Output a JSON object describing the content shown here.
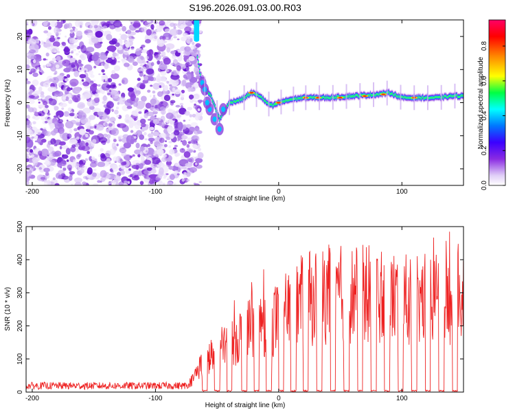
{
  "title": "S196.2026.091.03.00.R03",
  "chart_data": [
    {
      "type": "heatmap",
      "name": "spectrogram",
      "xlabel": "Height of straight line (km)",
      "ylabel": "Frequency (Hz)",
      "xlim": [
        -205,
        150
      ],
      "ylim": [
        -25,
        25
      ],
      "xticks": [
        -200,
        -100,
        0,
        100
      ],
      "xtick_labels": [
        "-200",
        "-100",
        "0",
        "100"
      ],
      "yticks": [
        -20,
        -10,
        0,
        10,
        20
      ],
      "ytick_labels": [
        "-20",
        "-10",
        "0",
        "10",
        "20"
      ],
      "signal_onset_km": -70,
      "signal_frequency_trace": {
        "x": [
          -70,
          -62,
          -55,
          -48,
          -40,
          -30,
          -22,
          -15,
          -10,
          -5,
          0,
          10,
          20,
          40,
          60,
          80,
          90,
          100,
          110,
          120,
          130,
          140,
          150
        ],
        "y": [
          22,
          5,
          2,
          -5,
          0,
          1,
          3,
          2,
          0,
          -1,
          0,
          1,
          1.5,
          1.5,
          2,
          2.5,
          3,
          1.5,
          1.5,
          1.5,
          1.5,
          2,
          2
        ]
      },
      "colorbar": {
        "label": "Normalized spectral amplitude",
        "range": [
          0,
          0.95
        ],
        "ticks": [
          0.0,
          0.2,
          0.4,
          0.6,
          0.8
        ],
        "tick_labels": [
          "0.0",
          "0.2",
          "0.4",
          "0.6",
          "0.8"
        ],
        "colors": [
          "#ffffff",
          "#e0cff7",
          "#8a2be2",
          "#3b00ff",
          "#0077ff",
          "#00ffff",
          "#00ff44",
          "#ffff00",
          "#ff8800",
          "#ff0000",
          "#ff0066"
        ]
      }
    },
    {
      "type": "line",
      "name": "snr",
      "xlabel": "Height of straight line (km)",
      "ylabel": "SNR (10 * v/v)",
      "xlim": [
        -205,
        150
      ],
      "ylim": [
        0,
        500
      ],
      "xticks": [
        -200,
        -100,
        0,
        100
      ],
      "xtick_labels": [
        "-200",
        "-100",
        "0",
        "100"
      ],
      "yticks": [
        0,
        100,
        200,
        300,
        400,
        500
      ],
      "ytick_labels": [
        "0",
        "100",
        "200",
        "300",
        "400",
        "500"
      ],
      "line_color": "#ee2222",
      "envelope": {
        "x": [
          -205,
          -75,
          -70,
          -65,
          -60,
          -50,
          -40,
          -30,
          -20,
          -10,
          0,
          10,
          20,
          40,
          60,
          80,
          100,
          120,
          140,
          150
        ],
        "y": [
          20,
          20,
          40,
          80,
          100,
          130,
          160,
          190,
          220,
          230,
          240,
          270,
          300,
          320,
          320,
          320,
          300,
          300,
          300,
          310
        ]
      },
      "dropouts_km": [
        -60,
        -50,
        -40,
        -28,
        -18,
        -8,
        2,
        12,
        22,
        33,
        44,
        55,
        66,
        77,
        88,
        99,
        110,
        121,
        132,
        143
      ]
    }
  ]
}
